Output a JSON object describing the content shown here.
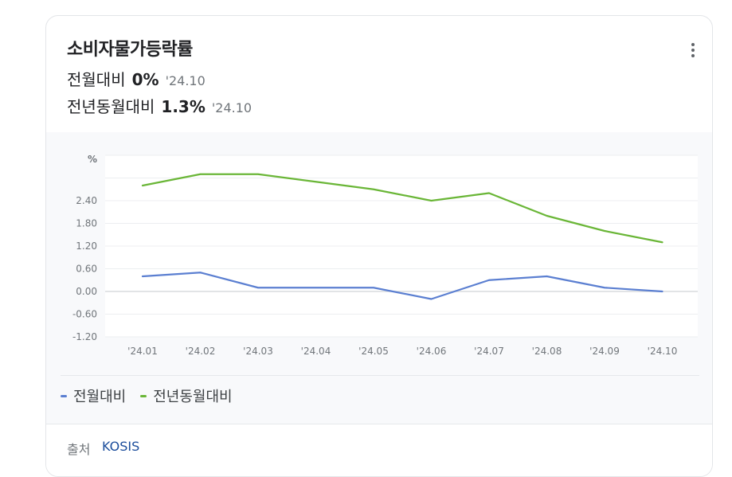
{
  "card": {
    "title": "소비자물가등락률",
    "stats": [
      {
        "label": "전월대비",
        "value": "0%",
        "period": "'24.10"
      },
      {
        "label": "전년동월대비",
        "value": "1.3%",
        "period": "'24.10"
      }
    ]
  },
  "menu": {
    "icon": "more-vert-icon"
  },
  "colors": {
    "mom": "#5b7fd1",
    "yoy": "#6ab637",
    "grid": "#eceef0",
    "zero": "#d9dbde"
  },
  "chart_data": {
    "type": "line",
    "ylabel": "%",
    "categories": [
      "'24.01",
      "'24.02",
      "'24.03",
      "'24.04",
      "'24.05",
      "'24.06",
      "'24.07",
      "'24.08",
      "'24.09",
      "'24.10"
    ],
    "y_ticks": [
      "2.40",
      "1.80",
      "1.20",
      "0.60",
      "0.00",
      "-0.60",
      "-1.20"
    ],
    "ylim": [
      -1.2,
      3.6
    ],
    "grid": true,
    "legend_position": "bottom-left",
    "series": [
      {
        "name": "전월대비",
        "values": [
          0.4,
          0.5,
          0.1,
          0.1,
          0.1,
          -0.2,
          0.3,
          0.4,
          0.1,
          0.0
        ]
      },
      {
        "name": "전년동월대비",
        "values": [
          2.8,
          3.1,
          3.1,
          2.9,
          2.7,
          2.4,
          2.6,
          2.0,
          1.6,
          1.3
        ]
      }
    ]
  },
  "source": {
    "label": "출처",
    "link": "KOSIS"
  }
}
